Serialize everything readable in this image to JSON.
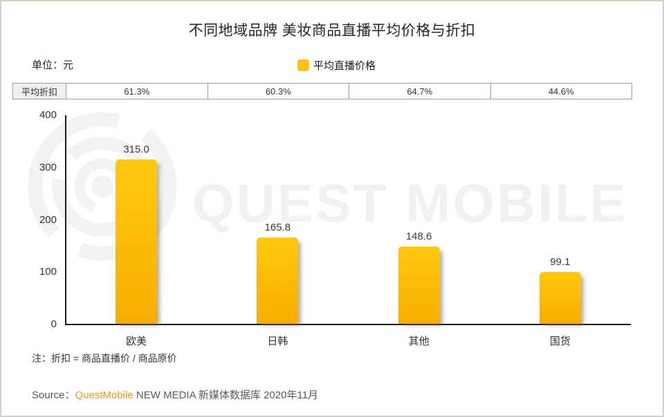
{
  "page": {
    "title": "不同地域品牌 美妆商品直播平均价格与折扣",
    "unit_label": "单位：元",
    "note": "注：折扣 = 商品直播价 / 商品原价",
    "source_prefix": "Source：",
    "source_brand": "QuestMobile",
    "source_suffix": " NEW MEDIA 新媒体数据库 2020年11月",
    "watermark_text": "QUEST MOBILE"
  },
  "legend": {
    "label": "平均直播价格",
    "swatch_color": "#FFC20E"
  },
  "chart_data": {
    "type": "bar",
    "title": "不同地域品牌 美妆商品直播平均价格与折扣",
    "unit": "元",
    "categories": [
      "欧美",
      "日韩",
      "其他",
      "国货"
    ],
    "series_name": "平均直播价格",
    "values": [
      315.0,
      165.8,
      148.6,
      99.1
    ],
    "value_labels": [
      "315.0",
      "165.8",
      "148.6",
      "99.1"
    ],
    "discount_row": {
      "label": "平均折扣",
      "values": [
        "61.3%",
        "60.3%",
        "64.7%",
        "44.6%"
      ]
    },
    "ylim": [
      0,
      400
    ],
    "y_ticks": [
      0,
      100,
      200,
      300,
      400
    ],
    "grid": false,
    "legend_position": "top-center",
    "colors": {
      "bar_top": "#FFC90F",
      "bar_bottom": "#F8AD00",
      "legend_swatch": "#FFC20E",
      "brand_orange": "#F7941D",
      "watermark": "#F1F1F1",
      "page_border": "#D6D0C4",
      "axis": "#1A1A1A"
    }
  }
}
